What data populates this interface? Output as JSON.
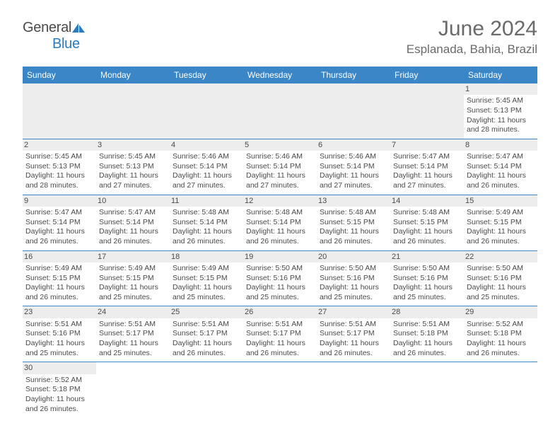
{
  "logo": {
    "general": "General",
    "blue": "Blue"
  },
  "title": "June 2024",
  "location": "Esplanada, Bahia, Brazil",
  "colors": {
    "header_bg": "#3b86c6",
    "header_text": "#ffffff",
    "daynum_bg": "#ededed",
    "border": "#3b86c6",
    "text": "#4a4a4a",
    "logo_blue": "#2b7bbf"
  },
  "weekdays": [
    "Sunday",
    "Monday",
    "Tuesday",
    "Wednesday",
    "Thursday",
    "Friday",
    "Saturday"
  ],
  "weeks": [
    [
      null,
      null,
      null,
      null,
      null,
      null,
      {
        "d": "1",
        "sr": "5:45 AM",
        "ss": "5:13 PM",
        "dl": "11 hours and 28 minutes."
      }
    ],
    [
      {
        "d": "2",
        "sr": "5:45 AM",
        "ss": "5:13 PM",
        "dl": "11 hours and 28 minutes."
      },
      {
        "d": "3",
        "sr": "5:45 AM",
        "ss": "5:13 PM",
        "dl": "11 hours and 27 minutes."
      },
      {
        "d": "4",
        "sr": "5:46 AM",
        "ss": "5:14 PM",
        "dl": "11 hours and 27 minutes."
      },
      {
        "d": "5",
        "sr": "5:46 AM",
        "ss": "5:14 PM",
        "dl": "11 hours and 27 minutes."
      },
      {
        "d": "6",
        "sr": "5:46 AM",
        "ss": "5:14 PM",
        "dl": "11 hours and 27 minutes."
      },
      {
        "d": "7",
        "sr": "5:47 AM",
        "ss": "5:14 PM",
        "dl": "11 hours and 27 minutes."
      },
      {
        "d": "8",
        "sr": "5:47 AM",
        "ss": "5:14 PM",
        "dl": "11 hours and 26 minutes."
      }
    ],
    [
      {
        "d": "9",
        "sr": "5:47 AM",
        "ss": "5:14 PM",
        "dl": "11 hours and 26 minutes."
      },
      {
        "d": "10",
        "sr": "5:47 AM",
        "ss": "5:14 PM",
        "dl": "11 hours and 26 minutes."
      },
      {
        "d": "11",
        "sr": "5:48 AM",
        "ss": "5:14 PM",
        "dl": "11 hours and 26 minutes."
      },
      {
        "d": "12",
        "sr": "5:48 AM",
        "ss": "5:14 PM",
        "dl": "11 hours and 26 minutes."
      },
      {
        "d": "13",
        "sr": "5:48 AM",
        "ss": "5:15 PM",
        "dl": "11 hours and 26 minutes."
      },
      {
        "d": "14",
        "sr": "5:48 AM",
        "ss": "5:15 PM",
        "dl": "11 hours and 26 minutes."
      },
      {
        "d": "15",
        "sr": "5:49 AM",
        "ss": "5:15 PM",
        "dl": "11 hours and 26 minutes."
      }
    ],
    [
      {
        "d": "16",
        "sr": "5:49 AM",
        "ss": "5:15 PM",
        "dl": "11 hours and 26 minutes."
      },
      {
        "d": "17",
        "sr": "5:49 AM",
        "ss": "5:15 PM",
        "dl": "11 hours and 25 minutes."
      },
      {
        "d": "18",
        "sr": "5:49 AM",
        "ss": "5:15 PM",
        "dl": "11 hours and 25 minutes."
      },
      {
        "d": "19",
        "sr": "5:50 AM",
        "ss": "5:16 PM",
        "dl": "11 hours and 25 minutes."
      },
      {
        "d": "20",
        "sr": "5:50 AM",
        "ss": "5:16 PM",
        "dl": "11 hours and 25 minutes."
      },
      {
        "d": "21",
        "sr": "5:50 AM",
        "ss": "5:16 PM",
        "dl": "11 hours and 25 minutes."
      },
      {
        "d": "22",
        "sr": "5:50 AM",
        "ss": "5:16 PM",
        "dl": "11 hours and 25 minutes."
      }
    ],
    [
      {
        "d": "23",
        "sr": "5:51 AM",
        "ss": "5:16 PM",
        "dl": "11 hours and 25 minutes."
      },
      {
        "d": "24",
        "sr": "5:51 AM",
        "ss": "5:17 PM",
        "dl": "11 hours and 25 minutes."
      },
      {
        "d": "25",
        "sr": "5:51 AM",
        "ss": "5:17 PM",
        "dl": "11 hours and 26 minutes."
      },
      {
        "d": "26",
        "sr": "5:51 AM",
        "ss": "5:17 PM",
        "dl": "11 hours and 26 minutes."
      },
      {
        "d": "27",
        "sr": "5:51 AM",
        "ss": "5:17 PM",
        "dl": "11 hours and 26 minutes."
      },
      {
        "d": "28",
        "sr": "5:51 AM",
        "ss": "5:18 PM",
        "dl": "11 hours and 26 minutes."
      },
      {
        "d": "29",
        "sr": "5:52 AM",
        "ss": "5:18 PM",
        "dl": "11 hours and 26 minutes."
      }
    ],
    [
      {
        "d": "30",
        "sr": "5:52 AM",
        "ss": "5:18 PM",
        "dl": "11 hours and 26 minutes."
      },
      null,
      null,
      null,
      null,
      null,
      null
    ]
  ],
  "labels": {
    "sunrise": "Sunrise:",
    "sunset": "Sunset:",
    "daylight": "Daylight:"
  }
}
